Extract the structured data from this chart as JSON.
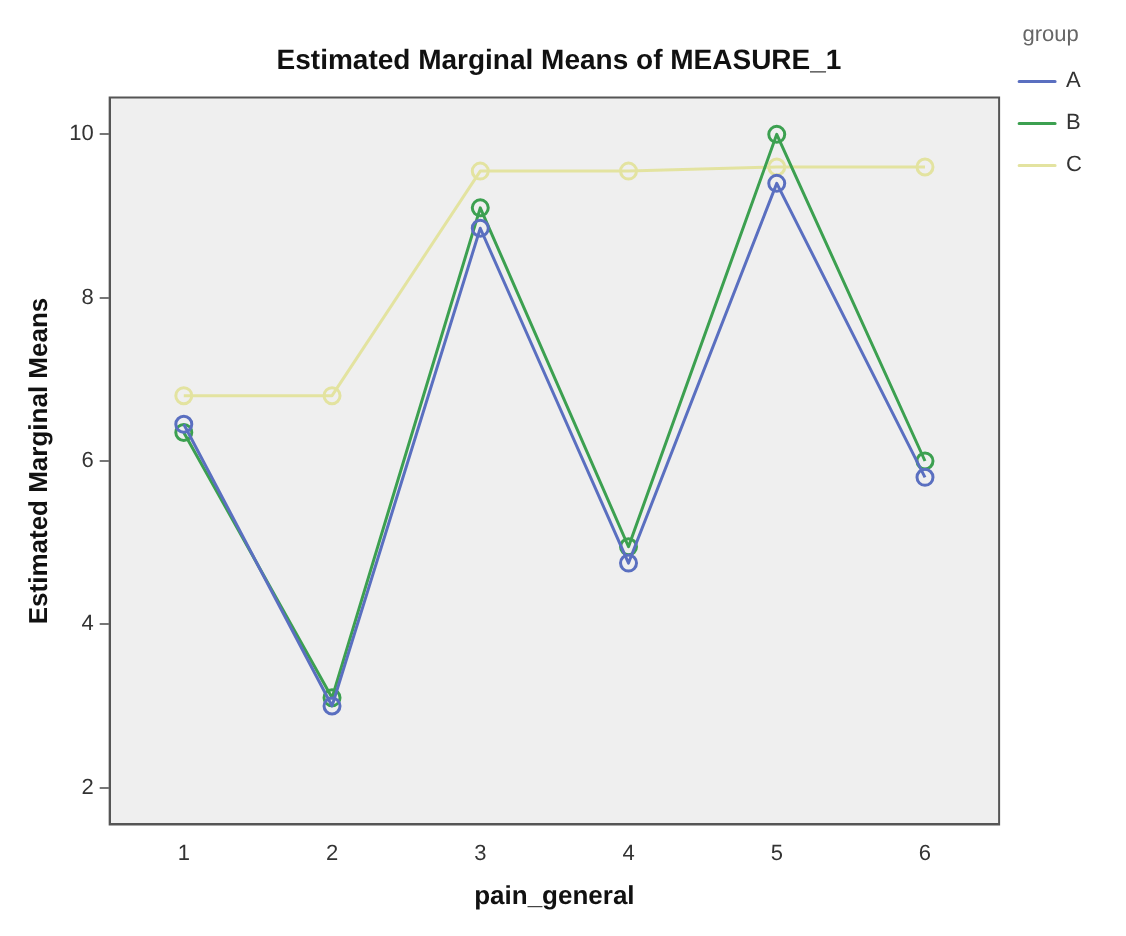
{
  "chart_data": {
    "type": "line",
    "title": "Estimated Marginal Means of MEASURE_1",
    "xlabel": "pain_general",
    "ylabel": "Estimated Marginal Means",
    "legend_title": "group",
    "categories": [
      "1",
      "2",
      "3",
      "4",
      "5",
      "6"
    ],
    "series": [
      {
        "name": "A",
        "color": "#5a6fc0",
        "values": [
          6.45,
          3.0,
          8.85,
          4.75,
          9.4,
          5.8
        ]
      },
      {
        "name": "B",
        "color": "#3ca050",
        "values": [
          6.35,
          3.1,
          9.1,
          4.95,
          10.0,
          6.0
        ]
      },
      {
        "name": "C",
        "color": "#e3e3a0",
        "values": [
          6.8,
          6.8,
          9.55,
          9.55,
          9.6,
          9.6
        ]
      }
    ],
    "ylim": [
      1.55,
      10.45
    ],
    "yticks": [
      2,
      4,
      6,
      8,
      10
    ],
    "grid": false,
    "legend": "right",
    "marker": "circle",
    "line_style": "solid"
  }
}
